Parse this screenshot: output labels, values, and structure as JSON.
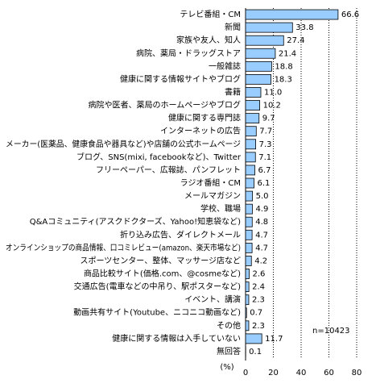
{
  "chart_data": {
    "type": "bar",
    "orientation": "horizontal",
    "categories": [
      "テレビ番組・CM",
      "新聞",
      "家族や友人、知人",
      "病院、薬局・ドラッグストア",
      "一般雑誌",
      "健康に関する情報サイトやブログ",
      "書籍",
      "病院や医者、薬局のホームページやブログ",
      "健康に関する専門誌",
      "インターネットの広告",
      "メーカー(医薬品、健康食品や器具など)や店舗の公式ホームページ",
      "ブログ、SNS(mixi, facebookなど)、Twitter",
      "フリーペーパー、広報誌、パンフレット",
      "ラジオ番組・CM",
      "メールマガジン",
      "学校、職場",
      "Q&Aコミュニティ(アスクドクターズ、Yahoo!知恵袋など)",
      "折り込み広告、ダイレクトメール",
      "オンラインショップの商品情報、口コミレビュー(amazon、楽天市場など)",
      "スポーツセンター、整体、マッサージ店など",
      "商品比較サイト(価格.com、@cosmeなど)",
      "交通広告(電車などの中吊り、駅ポスターなど)",
      "イベント、講演",
      "動画共有サイト(Youtube、ニコニコ動画など)",
      "その他",
      "健康に関する情報は入手していない",
      "無回答"
    ],
    "values": [
      66.6,
      33.8,
      27.4,
      21.4,
      18.8,
      18.3,
      11.0,
      10.2,
      9.7,
      7.7,
      7.3,
      7.1,
      6.7,
      6.1,
      5.0,
      4.9,
      4.8,
      4.7,
      4.7,
      4.2,
      2.6,
      2.4,
      2.3,
      0.7,
      2.3,
      11.7,
      0.1
    ],
    "value_labels": [
      "66.6",
      "33.8",
      "27.4",
      "21.4",
      "18.8",
      "18.3",
      "11.0",
      "10.2",
      "9.7",
      "7.7",
      "7.3",
      "7.1",
      "6.7",
      "6.1",
      "5.0",
      "4.9",
      "4.8",
      "4.7",
      "4.7",
      "4.2",
      "2.6",
      "2.4",
      "2.3",
      "0.7",
      "2.3",
      "11.7",
      "0.1"
    ],
    "color": "#99ccff",
    "xlim": [
      0,
      80
    ],
    "xticks": [
      0,
      20,
      40,
      60,
      80
    ],
    "grid": true,
    "xlabel": "(%)",
    "annotation": "n=10423"
  }
}
